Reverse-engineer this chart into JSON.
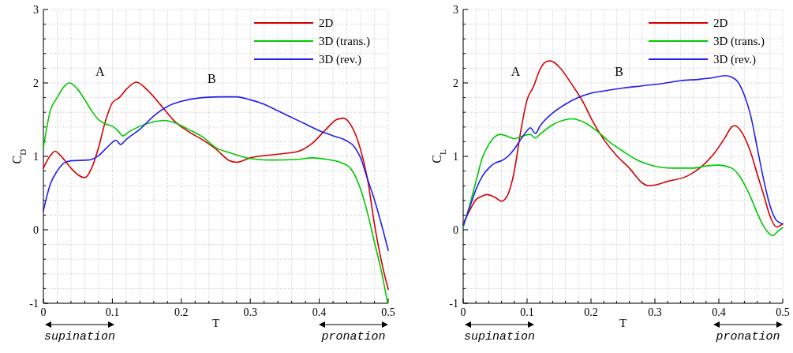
{
  "chart_data": [
    {
      "type": "line",
      "xlabel": "T",
      "ylabel": "C$_{D}$",
      "legend": "top right",
      "grid": true,
      "line_style": "solid",
      "marker": "none",
      "xlim": [
        0,
        0.5
      ],
      "ylim": [
        -1,
        3
      ],
      "xticks": [
        0,
        {
          "value": 0.02,
          "label": null
        },
        {
          "value": 0.04,
          "label": null
        },
        {
          "value": 0.06,
          "label": null
        },
        {
          "value": 0.08,
          "label": null
        },
        0.1,
        {
          "value": 0.12,
          "label": null
        },
        {
          "value": 0.14,
          "label": null
        },
        {
          "value": 0.16,
          "label": null
        },
        {
          "value": 0.18,
          "label": null
        },
        0.2,
        {
          "value": 0.22,
          "label": null
        },
        {
          "value": 0.24,
          "label": null
        },
        {
          "value": 0.26,
          "label": null
        },
        {
          "value": 0.28,
          "label": null
        },
        0.3,
        {
          "value": 0.32,
          "label": null
        },
        {
          "value": 0.34,
          "label": null
        },
        {
          "value": 0.36,
          "label": null
        },
        {
          "value": 0.38,
          "label": null
        },
        0.4,
        {
          "value": 0.42,
          "label": null
        },
        {
          "value": 0.44,
          "label": null
        },
        {
          "value": 0.46,
          "label": null
        },
        {
          "value": 0.48,
          "label": null
        },
        0.5
      ],
      "yticks": [
        -1,
        {
          "value": -0.8,
          "label": null
        },
        {
          "value": -0.6,
          "label": null
        },
        {
          "value": -0.4,
          "label": null
        },
        {
          "value": -0.2,
          "label": null
        },
        0,
        {
          "value": 0.2,
          "label": null
        },
        {
          "value": 0.4,
          "label": null
        },
        {
          "value": 0.6,
          "label": null
        },
        {
          "value": 0.8,
          "label": null
        },
        1,
        {
          "value": 1.2,
          "label": null
        },
        {
          "value": 1.4,
          "label": null
        },
        {
          "value": 1.6,
          "label": null
        },
        {
          "value": 1.8,
          "label": null
        },
        2,
        {
          "value": 2.2,
          "label": null
        },
        {
          "value": 2.4,
          "label": null
        },
        {
          "value": 2.6,
          "label": null
        },
        {
          "value": 2.8,
          "label": null
        },
        3
      ],
      "annotations": [
        "A",
        "B",
        "supination",
        "pronation"
      ],
      "series": [
        {
          "name": "2D",
          "color": "#d40000",
          "x": [
            0,
            0.01,
            0.017,
            0.025,
            0.04,
            0.05,
            0.06,
            0.07,
            0.08,
            0.09,
            0.1,
            0.11,
            0.12,
            0.135,
            0.15,
            0.17,
            0.19,
            0.21,
            0.23,
            0.25,
            0.27,
            0.28,
            0.3,
            0.32,
            0.35,
            0.37,
            0.39,
            0.41,
            0.425,
            0.435,
            0.445,
            0.46,
            0.47,
            0.48,
            0.49,
            0.5
          ],
          "values": [
            0.84,
            1.01,
            1.07,
            1.01,
            0.84,
            0.75,
            0.71,
            0.84,
            1.12,
            1.48,
            1.73,
            1.8,
            1.91,
            2.01,
            1.91,
            1.7,
            1.48,
            1.34,
            1.23,
            1.1,
            0.94,
            0.92,
            0.98,
            1.01,
            1.04,
            1.07,
            1.18,
            1.37,
            1.5,
            1.52,
            1.44,
            1.09,
            0.69,
            0.08,
            -0.42,
            -0.81
          ]
        },
        {
          "name": "3D (trans.)",
          "color": "#00c800",
          "x": [
            0,
            0.01,
            0.02,
            0.03,
            0.038,
            0.05,
            0.06,
            0.07,
            0.08,
            0.09,
            0.1,
            0.108,
            0.115,
            0.125,
            0.14,
            0.16,
            0.175,
            0.19,
            0.21,
            0.23,
            0.25,
            0.27,
            0.29,
            0.31,
            0.33,
            0.37,
            0.39,
            0.41,
            0.43,
            0.445,
            0.46,
            0.47,
            0.48,
            0.49,
            0.499
          ],
          "values": [
            1.12,
            1.62,
            1.8,
            1.95,
            2.0,
            1.91,
            1.77,
            1.62,
            1.5,
            1.44,
            1.41,
            1.35,
            1.28,
            1.34,
            1.41,
            1.47,
            1.49,
            1.46,
            1.37,
            1.27,
            1.12,
            1.05,
            0.99,
            0.96,
            0.95,
            0.96,
            0.98,
            0.96,
            0.92,
            0.84,
            0.55,
            0.23,
            -0.17,
            -0.56,
            -0.99
          ]
        },
        {
          "name": "3D (rev.)",
          "color": "#2020f0",
          "x": [
            0,
            0.01,
            0.02,
            0.03,
            0.04,
            0.065,
            0.08,
            0.09,
            0.1,
            0.105,
            0.112,
            0.12,
            0.14,
            0.16,
            0.18,
            0.2,
            0.23,
            0.26,
            0.28,
            0.3,
            0.32,
            0.34,
            0.36,
            0.38,
            0.4,
            0.42,
            0.44,
            0.45,
            0.46,
            0.47,
            0.48,
            0.49,
            0.5
          ],
          "values": [
            0.26,
            0.62,
            0.8,
            0.91,
            0.94,
            0.95,
            1.01,
            1.1,
            1.19,
            1.22,
            1.16,
            1.23,
            1.37,
            1.55,
            1.68,
            1.75,
            1.8,
            1.81,
            1.81,
            1.77,
            1.71,
            1.62,
            1.53,
            1.44,
            1.35,
            1.28,
            1.21,
            1.14,
            0.98,
            0.69,
            0.41,
            0.08,
            -0.28
          ]
        }
      ]
    },
    {
      "type": "line",
      "xlabel": "T",
      "ylabel": "C$_{L}$",
      "legend": "top right",
      "grid": true,
      "line_style": "solid",
      "marker": "none",
      "xlim": [
        0,
        0.5
      ],
      "ylim": [
        -1,
        3
      ],
      "xticks": [
        0,
        {
          "value": 0.02,
          "label": null
        },
        {
          "value": 0.04,
          "label": null
        },
        {
          "value": 0.06,
          "label": null
        },
        {
          "value": 0.08,
          "label": null
        },
        0.1,
        {
          "value": 0.12,
          "label": null
        },
        {
          "value": 0.14,
          "label": null
        },
        {
          "value": 0.16,
          "label": null
        },
        {
          "value": 0.18,
          "label": null
        },
        0.2,
        {
          "value": 0.22,
          "label": null
        },
        {
          "value": 0.24,
          "label": null
        },
        {
          "value": 0.26,
          "label": null
        },
        {
          "value": 0.28,
          "label": null
        },
        0.3,
        {
          "value": 0.32,
          "label": null
        },
        {
          "value": 0.34,
          "label": null
        },
        {
          "value": 0.36,
          "label": null
        },
        {
          "value": 0.38,
          "label": null
        },
        0.4,
        {
          "value": 0.42,
          "label": null
        },
        {
          "value": 0.44,
          "label": null
        },
        {
          "value": 0.46,
          "label": null
        },
        {
          "value": 0.48,
          "label": null
        },
        0.5
      ],
      "yticks": [
        -1,
        {
          "value": -0.8,
          "label": null
        },
        {
          "value": -0.6,
          "label": null
        },
        {
          "value": -0.4,
          "label": null
        },
        {
          "value": -0.2,
          "label": null
        },
        0,
        {
          "value": 0.2,
          "label": null
        },
        {
          "value": 0.4,
          "label": null
        },
        {
          "value": 0.6,
          "label": null
        },
        {
          "value": 0.8,
          "label": null
        },
        1,
        {
          "value": 1.2,
          "label": null
        },
        {
          "value": 1.4,
          "label": null
        },
        {
          "value": 1.6,
          "label": null
        },
        {
          "value": 1.8,
          "label": null
        },
        2,
        {
          "value": 2.2,
          "label": null
        },
        {
          "value": 2.4,
          "label": null
        },
        {
          "value": 2.6,
          "label": null
        },
        {
          "value": 2.8,
          "label": null
        },
        3
      ],
      "annotations": [
        "A",
        "B",
        "supination",
        "pronation"
      ],
      "series": [
        {
          "name": "2D",
          "color": "#d40000",
          "x": [
            0,
            0.01,
            0.02,
            0.03,
            0.037,
            0.05,
            0.06,
            0.07,
            0.08,
            0.09,
            0.1,
            0.11,
            0.12,
            0.13,
            0.137,
            0.15,
            0.17,
            0.19,
            0.2,
            0.22,
            0.24,
            0.26,
            0.28,
            0.29,
            0.3,
            0.32,
            0.35,
            0.37,
            0.39,
            0.41,
            0.42,
            0.425,
            0.435,
            0.45,
            0.46,
            0.47,
            0.48,
            0.49,
            0.5
          ],
          "values": [
            0.08,
            0.26,
            0.41,
            0.46,
            0.48,
            0.44,
            0.39,
            0.48,
            0.8,
            1.34,
            1.77,
            1.95,
            2.18,
            2.29,
            2.3,
            2.22,
            1.98,
            1.7,
            1.52,
            1.23,
            1.01,
            0.84,
            0.64,
            0.6,
            0.61,
            0.66,
            0.73,
            0.84,
            1.01,
            1.26,
            1.4,
            1.42,
            1.34,
            1.05,
            0.76,
            0.48,
            0.19,
            0.04,
            0.08
          ]
        },
        {
          "name": "3D (trans.)",
          "color": "#00c800",
          "x": [
            0,
            0.01,
            0.02,
            0.03,
            0.04,
            0.05,
            0.058,
            0.07,
            0.08,
            0.09,
            0.105,
            0.113,
            0.12,
            0.14,
            0.16,
            0.17,
            0.19,
            0.21,
            0.23,
            0.25,
            0.27,
            0.29,
            0.31,
            0.33,
            0.36,
            0.38,
            0.4,
            0.42,
            0.43,
            0.44,
            0.45,
            0.46,
            0.47,
            0.48,
            0.485,
            0.49,
            0.5
          ],
          "values": [
            0.03,
            0.33,
            0.66,
            0.98,
            1.16,
            1.27,
            1.3,
            1.27,
            1.24,
            1.27,
            1.3,
            1.25,
            1.3,
            1.43,
            1.5,
            1.51,
            1.46,
            1.34,
            1.19,
            1.07,
            0.96,
            0.89,
            0.85,
            0.84,
            0.84,
            0.87,
            0.88,
            0.84,
            0.76,
            0.62,
            0.44,
            0.23,
            0.05,
            -0.06,
            -0.08,
            -0.04,
            0.03
          ]
        },
        {
          "name": "3D (rev.)",
          "color": "#2020f0",
          "x": [
            0,
            0.01,
            0.02,
            0.03,
            0.04,
            0.05,
            0.06,
            0.07,
            0.08,
            0.09,
            0.1,
            0.105,
            0.113,
            0.12,
            0.14,
            0.16,
            0.18,
            0.2,
            0.22,
            0.25,
            0.28,
            0.31,
            0.34,
            0.37,
            0.39,
            0.41,
            0.42,
            0.43,
            0.44,
            0.45,
            0.46,
            0.47,
            0.48,
            0.49,
            0.5
          ],
          "values": [
            0.06,
            0.3,
            0.55,
            0.73,
            0.84,
            0.91,
            0.94,
            1.0,
            1.1,
            1.23,
            1.35,
            1.39,
            1.31,
            1.41,
            1.59,
            1.71,
            1.8,
            1.86,
            1.89,
            1.93,
            1.96,
            1.99,
            2.03,
            2.05,
            2.07,
            2.1,
            2.08,
            2.01,
            1.83,
            1.55,
            1.12,
            0.69,
            0.33,
            0.13,
            0.08
          ]
        }
      ]
    }
  ]
}
